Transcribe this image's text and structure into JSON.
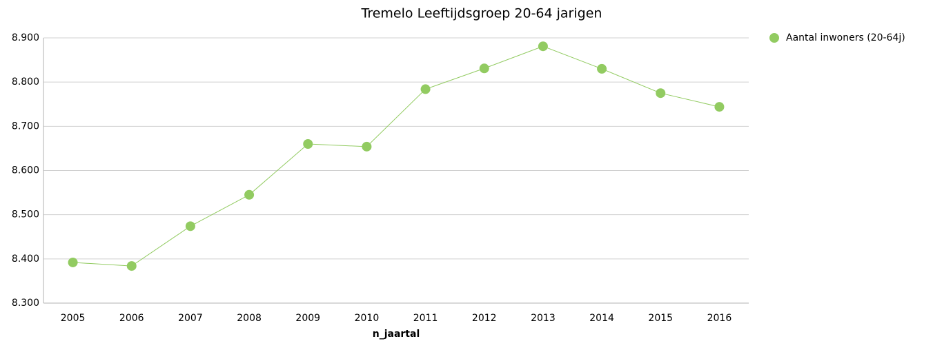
{
  "chart_data": {
    "type": "line",
    "title": "Tremelo  Leeftijdsgroep 20-64 jarigen",
    "x_label": "n_jaartal",
    "categories": [
      "2005",
      "2006",
      "2007",
      "2008",
      "2009",
      "2010",
      "2011",
      "2012",
      "2013",
      "2014",
      "2015",
      "2016"
    ],
    "series": [
      {
        "name": "Aantal inwoners  (20-64j)",
        "color": "#92cb61",
        "values": [
          8392,
          8384,
          8474,
          8545,
          8660,
          8654,
          8784,
          8831,
          8881,
          8830,
          8775,
          8744
        ]
      }
    ],
    "ylim": [
      8300,
      8900
    ],
    "yticks": [
      {
        "value": 8300,
        "label": "8.300"
      },
      {
        "value": 8400,
        "label": "8.400"
      },
      {
        "value": 8500,
        "label": "8.500"
      },
      {
        "value": 8600,
        "label": "8.600"
      },
      {
        "value": 8700,
        "label": "8.700"
      },
      {
        "value": 8800,
        "label": "8.800"
      },
      {
        "value": 8900,
        "label": "8.900"
      }
    ],
    "grid": true,
    "legend": "right"
  }
}
